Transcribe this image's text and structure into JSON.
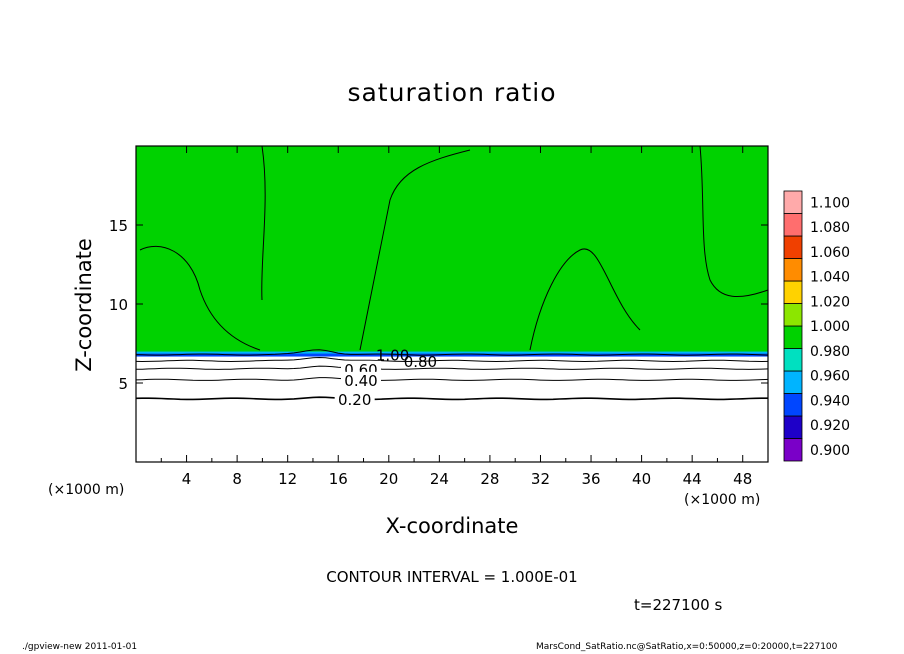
{
  "chart_data": {
    "type": "heatmap",
    "title": "saturation ratio",
    "xlabel": "X-coordinate",
    "ylabel": "Z-coordinate",
    "x_unit": "(×1000 m)",
    "xlim": [
      0,
      50
    ],
    "ylim": [
      0,
      20
    ],
    "x_ticks": [
      "4",
      "8",
      "12",
      "16",
      "20",
      "24",
      "28",
      "32",
      "36",
      "40",
      "44",
      "48"
    ],
    "y_ticks": [
      "5",
      "10",
      "15"
    ],
    "colorbar": {
      "levels": [
        "0.900",
        "0.920",
        "0.940",
        "0.960",
        "0.980",
        "1.000",
        "1.020",
        "1.040",
        "1.060",
        "1.080",
        "1.100"
      ],
      "colors": [
        "#7a00c8",
        "#1e00c8",
        "#0046ff",
        "#00b4ff",
        "#00e0c0",
        "#00d200",
        "#8ce600",
        "#ffd200",
        "#ff8c00",
        "#f04000",
        "#ff6e6e",
        "#ffaaaa"
      ]
    },
    "contours": [
      {
        "level": "1.00",
        "z_km": 6.8
      },
      {
        "level": "0.80",
        "z_km": 6.4
      },
      {
        "level": "0.60",
        "z_km": 5.9
      },
      {
        "level": "0.40",
        "z_km": 5.2
      },
      {
        "level": "0.20",
        "z_km": 4.0
      }
    ],
    "saturated_region_base_km": 6.8
  },
  "annotations": {
    "contour_interval": "CONTOUR INTERVAL = 1.000E-01",
    "time": "t=227100 s"
  },
  "footer": {
    "left": "./gpview-new   2011-01-01",
    "right": "MarsCond_SatRatio.nc@SatRatio,x=0:50000,z=0:20000,t=227100"
  }
}
